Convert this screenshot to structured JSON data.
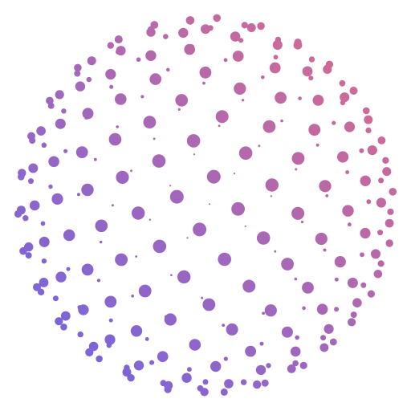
{
  "graphic": {
    "description_type": "dot-sphere",
    "colors": {
      "gradient_start": "#6b63e6",
      "gradient_end": "#e06b8a",
      "background": "#ffffff"
    },
    "dot_count_approx": 260
  }
}
